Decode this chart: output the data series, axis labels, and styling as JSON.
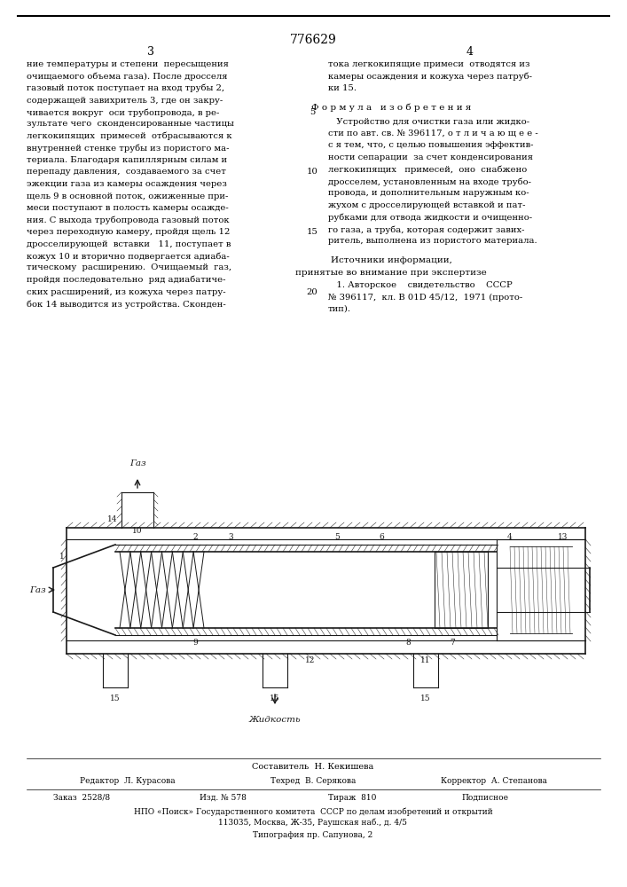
{
  "patent_number": "776629",
  "page_numbers": [
    "3",
    "4"
  ],
  "background_color": "#ffffff",
  "text_color": "#000000",
  "line_color": "#1a1a1a",
  "col1_text": [
    "ние температуры и степени  пересыщения",
    "очищаемого объема газа). После дросселя",
    "газовый поток поступает на вход трубы 2,",
    "содержащей завихритель 3, где он закру-",
    "чивается вокруг  оси трубопровода, в ре-",
    "зультате чего  сконденсированные частицы",
    "легкокипящих  примесей  отбрасываются к",
    "внутренней стенке трубы из пористого ма-",
    "териала. Благодаря капиллярным силам и",
    "перепаду давления,  создаваемого за счет",
    "эжекции газа из камеры осаждения через",
    "щель 9 в основной поток, ожиженные при-",
    "меси поступают в полость камеры осажде-",
    "ния. С выхода трубопровода газовый поток",
    "через переходную камеру, пройдя щель 12",
    "дросселирующей  вставки   11, поступает в",
    "кожух 10 и вторично подвергается адиаба-",
    "тическому  расширению.  Очищаемый  газ,",
    "пройдя последовательно  ряд адиабатиче-",
    "ских расширений, из кожуха через патру-",
    "бок 14 выводится из устройства. Сконден-"
  ],
  "col1_line_numbers": [
    null,
    null,
    null,
    null,
    "5",
    null,
    null,
    null,
    null,
    "10",
    null,
    null,
    null,
    null,
    "15",
    null,
    null,
    null,
    null,
    "20",
    null
  ],
  "col2_text_top": [
    "тока легкокипящие примеси  отводятся из",
    "камеры осаждения и кожуха через патруб-",
    "ки 15."
  ],
  "formula_title": "Ф о р м у л а   и з о б р е т е н и я",
  "formula_text": [
    "   Устройство для очистки газа или жидко-",
    "сти по авт. св. № 396117, о т л и ч а ю щ е е -",
    "с я тем, что, с целью повышения эффектив-",
    "ности сепарации  за счет конденсирования",
    "легкокипящих   примесей,  оно  снабжено",
    "дросселем, установленным на входе трубо-",
    "провода, и дополнительным наружным ко-",
    "жухом с дросселирующей вставкой и пат-",
    "рубками для отвода жидкости и очищенно-",
    "го газа, а труба, которая содержит завих-",
    "ритель, выполнена из пористого материала."
  ],
  "sources_title": "Источники информации,",
  "sources_subtitle": "принятые во внимание при экспертизе",
  "sources_text": [
    "   1. Авторское    свидетельство    СССР",
    "№ 396117,  кл. В 01D 45/12,  1971 (прото-",
    "тип)."
  ],
  "footer_composer": "Составитель  Н. Кекишева",
  "footer_editor": "Редактор  Л. Курасова",
  "footer_tech": "Техред  В. Серякова",
  "footer_corrector": "Корректор  А. Степанова",
  "footer_order": "Заказ  2528/8",
  "footer_izd": "Изд. № 578",
  "footer_tiraz": "Тираж  810",
  "footer_podp": "Подписное",
  "footer_npo": "НПО «Поиск» Государственного комитета  СССР по делам изобретений и открытий",
  "footer_address": "113035, Москва, Ж-35, Раушская наб., д. 4/5",
  "footer_tipog": "Типография пр. Сапунова, 2"
}
